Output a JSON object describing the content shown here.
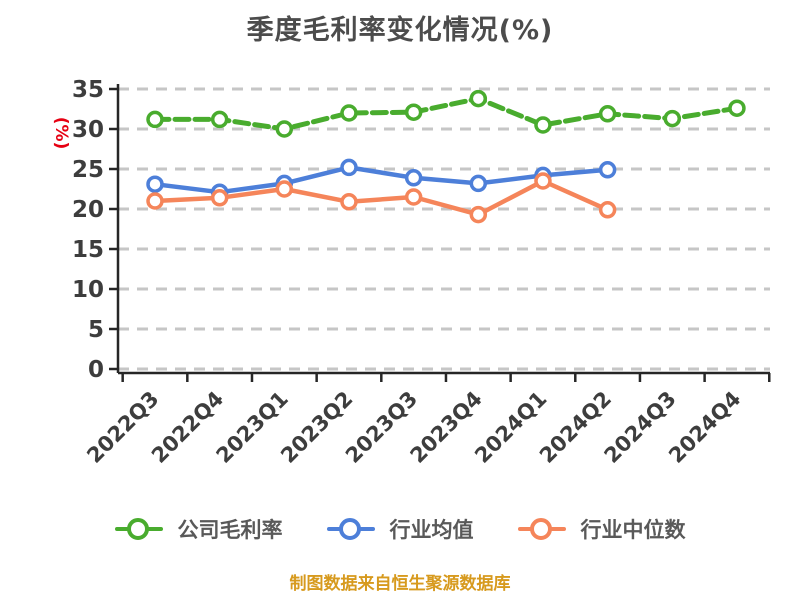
{
  "chart": {
    "title": "季度毛利率变化情况(%)",
    "y_axis_label": "(%)",
    "caption": "制图数据来自恒生聚源数据库"
  },
  "legend": [
    {
      "label": "公司毛利率",
      "color": "#49ac2e"
    },
    {
      "label": "行业均值",
      "color": "#4d7fd9"
    },
    {
      "label": "行业中位数",
      "color": "#f5855a"
    }
  ],
  "chart_data": {
    "type": "line",
    "title": "季度毛利率变化情况(%)",
    "categories": [
      "2022Q3",
      "2022Q4",
      "2023Q1",
      "2023Q2",
      "2023Q3",
      "2023Q4",
      "2024Q1",
      "2024Q2",
      "2024Q3",
      "2024Q4"
    ],
    "series": [
      {
        "name": "公司毛利率",
        "color": "#49ac2e",
        "line_style": "dashed",
        "values": [
          31.2,
          31.2,
          30.0,
          32.0,
          32.1,
          33.8,
          30.5,
          31.9,
          31.3,
          32.6
        ]
      },
      {
        "name": "行业均值",
        "color": "#4d7fd9",
        "line_style": "solid",
        "values": [
          23.1,
          22.1,
          23.2,
          25.2,
          23.9,
          23.2,
          24.2,
          24.9,
          null,
          null
        ]
      },
      {
        "name": "行业中位数",
        "color": "#f5855a",
        "line_style": "solid",
        "values": [
          21.0,
          21.4,
          22.5,
          20.9,
          21.5,
          19.3,
          23.5,
          19.9,
          null,
          null
        ]
      }
    ],
    "ylabel": "(%)",
    "ylim": [
      0,
      35
    ],
    "y_ticks": [
      0,
      5,
      10,
      15,
      20,
      25,
      30,
      35
    ],
    "grid": "horizontal-dashed",
    "marker": "circle-white-filled",
    "legend_position": "bottom",
    "x_tick_label_rotation_deg": 45
  },
  "style_colors": {
    "title_text": "#4c4c4c",
    "axis_text": "#3d3d3d",
    "axis_line": "#262626",
    "gridline": "#c6c6c6",
    "y_unit_label": "#e60012",
    "caption_text": "#d79a1e",
    "legend_text": "#595959"
  }
}
